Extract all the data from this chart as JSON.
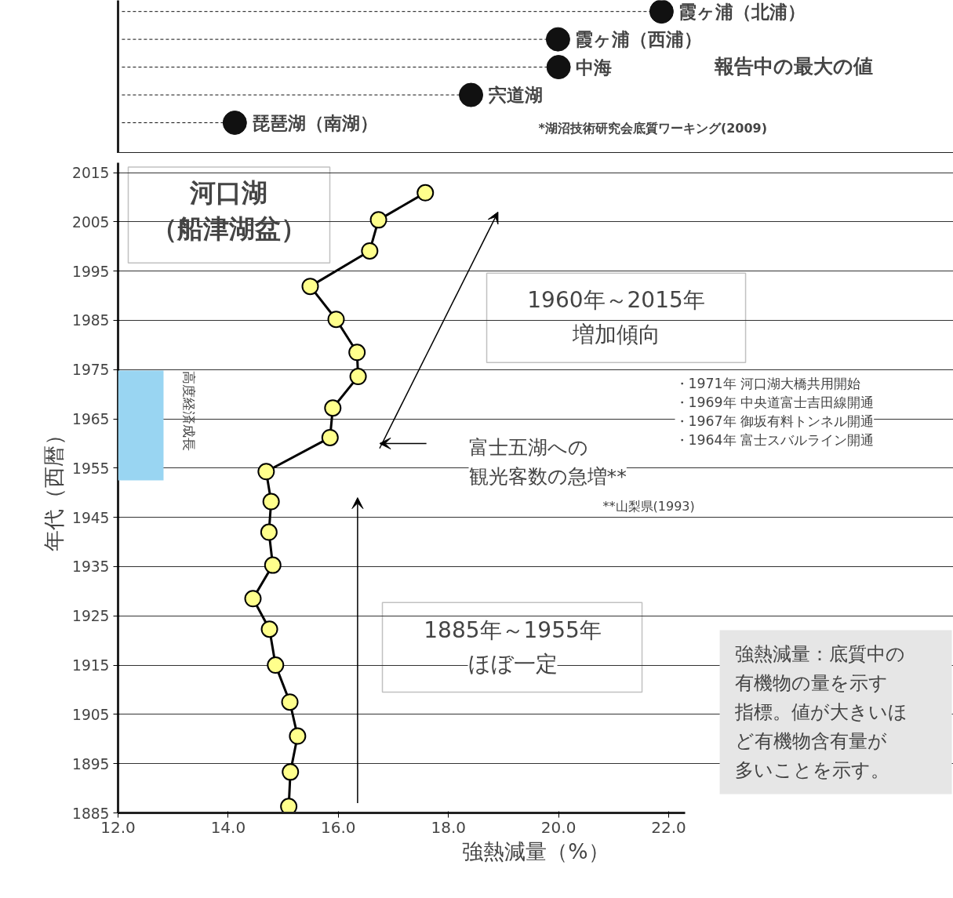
{
  "chart_data": [
    {
      "type": "lollipop",
      "orientation": "horizontal",
      "subtitle": "報告中の最大の値",
      "categories": [
        "霞ヶ浦（北浦）",
        "霞ヶ浦（西浦）",
        "中海",
        "宍道湖",
        "琵琶湖（南湖）"
      ],
      "series": [
        {
          "color": "#111111",
          "values": [
            21.87,
            19.99,
            20.0,
            18.41,
            14.12
          ]
        }
      ],
      "xlim": [
        12,
        27.17
      ],
      "line_style": "dashed",
      "marker": "circle",
      "annotations": [
        "*湖沼技術研究会底質ワーキング(2009)"
      ]
    },
    {
      "type": "line",
      "orientation": "horizontal",
      "title": "河口湖",
      "subtitle": "（船津湖盆）",
      "xlabel": "強熱減量（%）",
      "ylabel": "年代（西暦）",
      "x": [
        1886.3,
        1893.3,
        1900.6,
        1907.5,
        1915.0,
        1922.3,
        1928.5,
        1935.3,
        1942.0,
        1948.2,
        1954.3,
        1961.2,
        1967.2,
        1973.6,
        1978.5,
        1985.2,
        1991.9,
        1999.1,
        2005.4,
        2010.9
      ],
      "series": [
        {
          "color": "#000000",
          "values": [
            15.1,
            15.13,
            15.26,
            15.12,
            14.86,
            14.75,
            14.45,
            14.81,
            14.74,
            14.78,
            14.69,
            15.85,
            15.9,
            16.36,
            16.34,
            15.96,
            15.49,
            16.57,
            16.73,
            17.58
          ]
        }
      ],
      "xlim": [
        12,
        27.17
      ],
      "ylim": [
        1885,
        2017
      ],
      "xticks": [
        {
          "value": 12,
          "label": "12.0"
        },
        {
          "value": 14,
          "label": "14.0"
        },
        {
          "value": 16,
          "label": "16.0"
        },
        {
          "value": 18,
          "label": "18.0"
        },
        {
          "value": 20,
          "label": "20.0"
        },
        {
          "value": 22,
          "label": "22.0"
        }
      ],
      "yticks": [
        1885,
        1895,
        1905,
        1915,
        1925,
        1935,
        1945,
        1955,
        1965,
        1975,
        1985,
        1995,
        2005,
        2015
      ],
      "grid": "y",
      "marker": "circle",
      "line_style": "solid",
      "bands": [
        {
          "axis": "y",
          "from": 1952.5,
          "to": 1974.8,
          "label": "高度経済成長",
          "color": "#99d5f2"
        }
      ],
      "annotations": [
        "1960年～2015年",
        "増加傾向",
        "1885年～1955年",
        "ほぼ一定",
        "富士五湖への",
        "観光客数の急増**",
        "**山梨県(1993)",
        "・1971年 河口湖大橋共用開始",
        "・1969年 中央道富士吉田線開通",
        "・1967年 御坂有料トンネル開通",
        "・1964年 富士スバルライン開通",
        "強熱減量：底質中の",
        "有機物の量を示す",
        "指標。値が大きいほ",
        "ど有機物含有量が",
        "多いことを示す。"
      ]
    }
  ]
}
